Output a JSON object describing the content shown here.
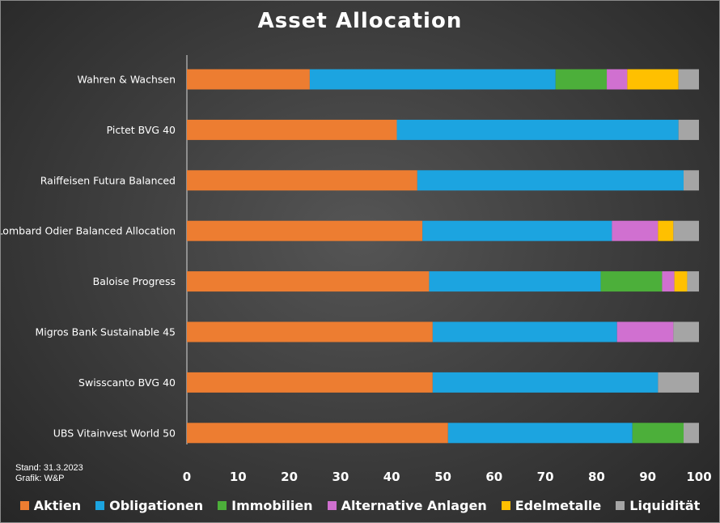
{
  "chart_data": {
    "type": "bar",
    "orientation": "horizontal",
    "stacked": true,
    "title": "Asset Allocation",
    "xlim": [
      0,
      100
    ],
    "x_ticks": [
      "0",
      "10",
      "20",
      "30",
      "40",
      "50",
      "60",
      "70",
      "80",
      "90",
      "100"
    ],
    "grid": false,
    "legend_position": "bottom",
    "categories": [
      "Wahren & Wachsen",
      "Pictet BVG 40",
      "Raiffeisen Futura Balanced",
      "Lombard Odier Balanced Allocation",
      "Baloise Progress",
      "Migros Bank Sustainable 45",
      "Swisscanto BVG 40",
      "UBS Vitainvest World 50"
    ],
    "series": [
      {
        "name": "Aktien",
        "color": "#ED7D31",
        "values": [
          24,
          41,
          45,
          46,
          47.3,
          48,
          48,
          51
        ]
      },
      {
        "name": "Obligationen",
        "color": "#1CA4E0",
        "values": [
          48,
          55,
          52,
          37,
          33.5,
          36,
          44,
          36
        ]
      },
      {
        "name": "Immobilien",
        "color": "#4CAF3A",
        "values": [
          10,
          0,
          0,
          0,
          12,
          0,
          0,
          10
        ]
      },
      {
        "name": "Alternative Anlagen",
        "color": "#D070D0",
        "values": [
          4,
          0,
          0,
          9,
          2.4,
          11,
          0,
          0
        ]
      },
      {
        "name": "Edelmetalle",
        "color": "#FFC000",
        "values": [
          10,
          0,
          0,
          3,
          2.5,
          0,
          0,
          0
        ]
      },
      {
        "name": "Liquidität",
        "color": "#A5A5A5",
        "values": [
          4,
          4,
          3,
          5,
          2.3,
          5,
          8,
          3
        ]
      }
    ]
  },
  "footnote": {
    "line1": "Stand: 31.3.2023",
    "line2": "Grafik: W&P"
  }
}
